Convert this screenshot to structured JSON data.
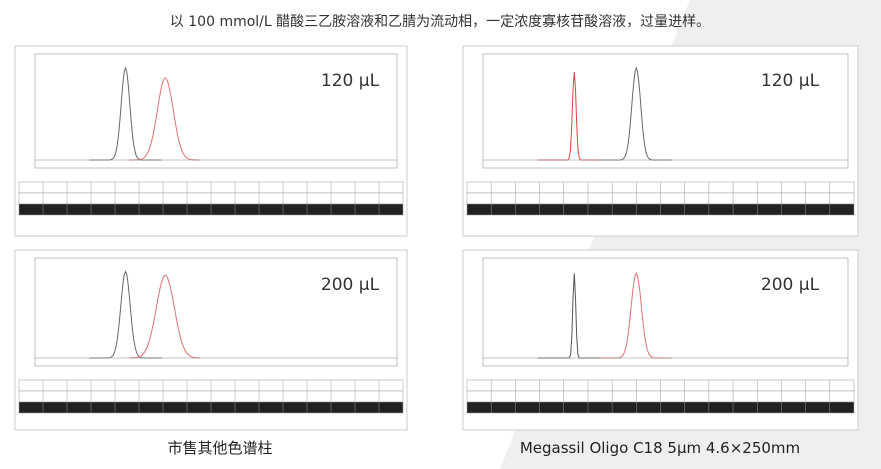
{
  "title": "以 100 mmol/L 醋酸三乙胺溶液和乙腈为流动相，一定浓度寡核苷酸溶液，过量进样。",
  "panels": [
    {
      "volume_label": "120 μL"
    },
    {
      "volume_label": "200 μL"
    },
    {
      "volume_label": "120 μL"
    },
    {
      "volume_label": "200 μL"
    }
  ],
  "captions": [
    "市售其他色谱柱",
    "Megassil Oligo C18 5μm 4.6×250mm"
  ]
}
